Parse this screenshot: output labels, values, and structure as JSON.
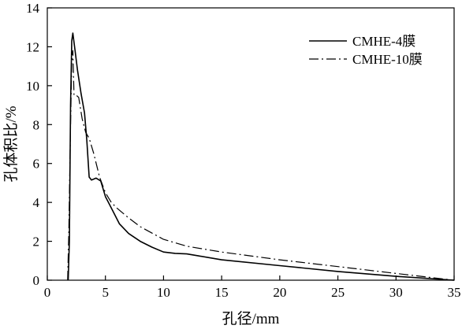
{
  "chart_data": {
    "type": "line",
    "title": "",
    "xlabel": "孔径/mm",
    "ylabel": "孔体积比/%",
    "xlim": [
      0,
      35
    ],
    "ylim": [
      0,
      14
    ],
    "x_ticks": [
      0,
      5,
      10,
      15,
      20,
      25,
      30,
      35
    ],
    "y_ticks": [
      0,
      2,
      4,
      6,
      8,
      10,
      12,
      14
    ],
    "grid": false,
    "legend_position": "top-right",
    "series": [
      {
        "name": "CMHE-4膜",
        "line_style": "solid",
        "points": [
          [
            1.8,
            0
          ],
          [
            1.9,
            2.0
          ],
          [
            2.0,
            9.0
          ],
          [
            2.1,
            12.3
          ],
          [
            2.2,
            12.7
          ],
          [
            2.35,
            12.0
          ],
          [
            2.6,
            10.8
          ],
          [
            2.9,
            9.6
          ],
          [
            3.2,
            8.6
          ],
          [
            3.4,
            7.2
          ],
          [
            3.6,
            5.3
          ],
          [
            3.8,
            5.15
          ],
          [
            4.2,
            5.25
          ],
          [
            4.6,
            5.1
          ],
          [
            5.0,
            4.3
          ],
          [
            5.6,
            3.6
          ],
          [
            6.2,
            2.9
          ],
          [
            7.0,
            2.4
          ],
          [
            8.0,
            2.0
          ],
          [
            9.0,
            1.7
          ],
          [
            10.0,
            1.45
          ],
          [
            11.0,
            1.38
          ],
          [
            12.0,
            1.35
          ],
          [
            13.0,
            1.25
          ],
          [
            15.0,
            1.05
          ],
          [
            20.0,
            0.75
          ],
          [
            25.0,
            0.45
          ],
          [
            30.0,
            0.2
          ],
          [
            35.0,
            0.0
          ]
        ]
      },
      {
        "name": "CMHE-10膜",
        "line_style": "dash-dot",
        "points": [
          [
            1.75,
            0
          ],
          [
            1.85,
            2.5
          ],
          [
            2.0,
            8.0
          ],
          [
            2.1,
            11.2
          ],
          [
            2.2,
            11.8
          ],
          [
            2.3,
            9.5
          ],
          [
            2.5,
            9.5
          ],
          [
            2.7,
            9.4
          ],
          [
            3.0,
            8.3
          ],
          [
            3.3,
            7.6
          ],
          [
            3.6,
            7.3
          ],
          [
            4.0,
            6.5
          ],
          [
            4.5,
            5.3
          ],
          [
            5.0,
            4.5
          ],
          [
            5.5,
            4.0
          ],
          [
            6.0,
            3.7
          ],
          [
            7.0,
            3.2
          ],
          [
            8.0,
            2.75
          ],
          [
            10.0,
            2.1
          ],
          [
            12.0,
            1.75
          ],
          [
            15.0,
            1.45
          ],
          [
            20.0,
            1.05
          ],
          [
            25.0,
            0.7
          ],
          [
            30.0,
            0.35
          ],
          [
            35.0,
            0.0
          ]
        ]
      }
    ]
  }
}
